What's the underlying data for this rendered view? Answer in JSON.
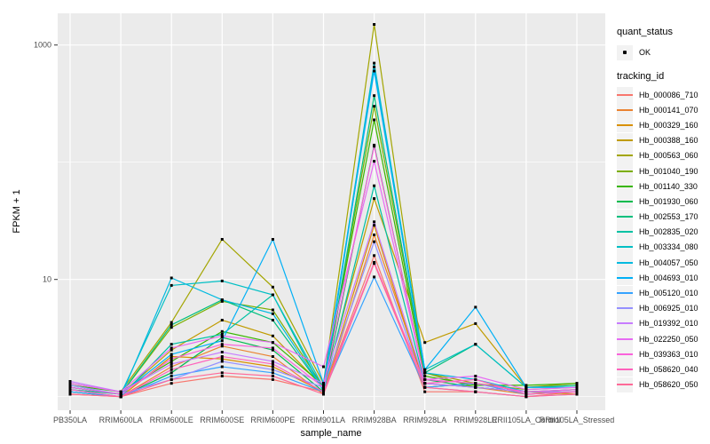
{
  "figure": {
    "x_axis": {
      "title": "sample_name"
    },
    "y_axis": {
      "title": "FPKM + 1",
      "scale": "log10",
      "ticks": [
        {
          "label": "10",
          "value": 10
        },
        {
          "label": "1000",
          "value": 1000
        }
      ],
      "major_gridlines": [
        10,
        1000
      ],
      "minor_gridlines": [
        1,
        100
      ]
    },
    "legend": {
      "quant_status_title": "quant_status",
      "ok_label": "OK",
      "tracking_id_title": "tracking_id"
    },
    "colors": {
      "panel_background": "#EBEBEB",
      "gridline": "#FFFFFF",
      "tick_mark": "#333333",
      "tick_label": "#4D4D4D",
      "axis_title": "#000000",
      "legend_key_background": "#F2F2F2",
      "point": "#000000"
    }
  },
  "chart_data": {
    "type": "line",
    "x_type": "categorical",
    "y_scale": "log10",
    "xlabel": "sample_name",
    "ylabel": "FPKM + 1",
    "ylim": [
      0.8,
      1800
    ],
    "legend_position": "right",
    "grid": true,
    "point_marker": "small black square (quant_status OK)",
    "categories": [
      "PB350LA",
      "RRIM600LA",
      "RRIM600LE",
      "RRIM600SE",
      "RRIM600PE",
      "RRIM901LA",
      "RRIM928BA",
      "RRIM928LA",
      "RRIM928LE",
      "RRII105LA_Control",
      "RRII105LA_Stressed"
    ],
    "series": [
      {
        "name": "Hb_000086_710",
        "color": "#F8766D",
        "values": [
          1.1,
          1.0,
          1.3,
          1.5,
          1.4,
          1.1,
          16,
          1.1,
          1.1,
          1.0,
          1.1
        ]
      },
      {
        "name": "Hb_000141_070",
        "color": "#EA8331",
        "values": [
          1.05,
          1.0,
          1.8,
          2.7,
          2.2,
          1.05,
          24,
          1.3,
          1.2,
          1.05,
          1.1
        ]
      },
      {
        "name": "Hb_000329_160",
        "color": "#D89000",
        "values": [
          1.1,
          1.0,
          2.2,
          2.1,
          1.8,
          1.1,
          29,
          1.2,
          1.3,
          1.1,
          1.05
        ]
      },
      {
        "name": "Hb_000388_160",
        "color": "#C09B00",
        "values": [
          1.2,
          1.05,
          2.5,
          4.5,
          3.3,
          1.2,
          49,
          2.9,
          4.2,
          1.2,
          1.3
        ]
      },
      {
        "name": "Hb_000563_060",
        "color": "#A3A500",
        "values": [
          1.3,
          1.1,
          4.3,
          22.0,
          8.6,
          1.3,
          1500,
          1.6,
          1.3,
          1.15,
          1.2
        ]
      },
      {
        "name": "Hb_001040_190",
        "color": "#7CAE00",
        "values": [
          1.2,
          1.05,
          3.9,
          6.5,
          5.5,
          1.2,
          300,
          1.6,
          1.2,
          1.1,
          1.15
        ]
      },
      {
        "name": "Hb_001140_330",
        "color": "#39B600",
        "values": [
          1.25,
          1.1,
          2.0,
          3.6,
          2.9,
          1.25,
          230,
          1.5,
          1.25,
          1.25,
          1.3
        ]
      },
      {
        "name": "Hb_001930_060",
        "color": "#00BB4E",
        "values": [
          1.1,
          1.0,
          1.6,
          3.2,
          2.5,
          1.1,
          140,
          1.4,
          1.2,
          1.1,
          1.1
        ]
      },
      {
        "name": "Hb_002553_170",
        "color": "#00BF7D",
        "values": [
          1.15,
          1.05,
          4.1,
          6.7,
          4.5,
          1.15,
          370,
          1.6,
          2.8,
          1.2,
          1.25
        ]
      },
      {
        "name": "Hb_002835_020",
        "color": "#00C1A3",
        "values": [
          1.1,
          1.0,
          2.8,
          3.4,
          7.4,
          1.1,
          63,
          1.3,
          1.2,
          1.1,
          1.1
        ]
      },
      {
        "name": "Hb_003334_080",
        "color": "#00BFC4",
        "values": [
          1.2,
          1.05,
          8.9,
          9.7,
          7.4,
          1.2,
          700,
          1.7,
          2.8,
          1.2,
          1.2
        ]
      },
      {
        "name": "Hb_004057_050",
        "color": "#00BAE0",
        "values": [
          1.15,
          1.0,
          10.3,
          6.7,
          5.1,
          1.15,
          650,
          1.6,
          1.4,
          1.1,
          1.15
        ]
      },
      {
        "name": "Hb_004693_010",
        "color": "#00B0F6",
        "values": [
          1.2,
          1.05,
          2.3,
          3.0,
          22.0,
          1.3,
          600,
          1.7,
          5.8,
          1.2,
          1.2
        ]
      },
      {
        "name": "Hb_005120_010",
        "color": "#35A2FF",
        "values": [
          1.1,
          1.0,
          1.5,
          1.8,
          1.6,
          1.1,
          10.5,
          1.2,
          1.3,
          1.05,
          1.1
        ]
      },
      {
        "name": "Hb_006925_010",
        "color": "#9590FF",
        "values": [
          1.25,
          1.05,
          1.4,
          2.0,
          1.7,
          1.2,
          21,
          1.2,
          1.1,
          1.0,
          1.05
        ]
      },
      {
        "name": "Hb_019392_010",
        "color": "#C77CFF",
        "values": [
          1.35,
          1.1,
          1.9,
          2.4,
          2.0,
          1.3,
          31,
          1.3,
          1.2,
          1.1,
          1.1
        ]
      },
      {
        "name": "Hb_022250_050",
        "color": "#E76BF3",
        "values": [
          1.3,
          1.1,
          2.6,
          3.3,
          2.9,
          1.8,
          102,
          1.4,
          1.5,
          1.15,
          1.2
        ]
      },
      {
        "name": "Hb_039363_010",
        "color": "#FA62DB",
        "values": [
          1.2,
          1.05,
          2.1,
          2.8,
          2.6,
          1.2,
          137,
          1.4,
          1.3,
          1.1,
          1.15
        ]
      },
      {
        "name": "Hb_058620_040",
        "color": "#FF62BC",
        "values": [
          1.15,
          1.0,
          1.7,
          2.2,
          1.9,
          1.1,
          14,
          1.3,
          1.4,
          1.05,
          1.1
        ]
      },
      {
        "name": "Hb_058620_050",
        "color": "#FF6A98",
        "values": [
          1.05,
          1.0,
          1.4,
          1.6,
          1.5,
          1.05,
          13.7,
          1.2,
          1.1,
          1.0,
          1.05
        ]
      }
    ]
  }
}
